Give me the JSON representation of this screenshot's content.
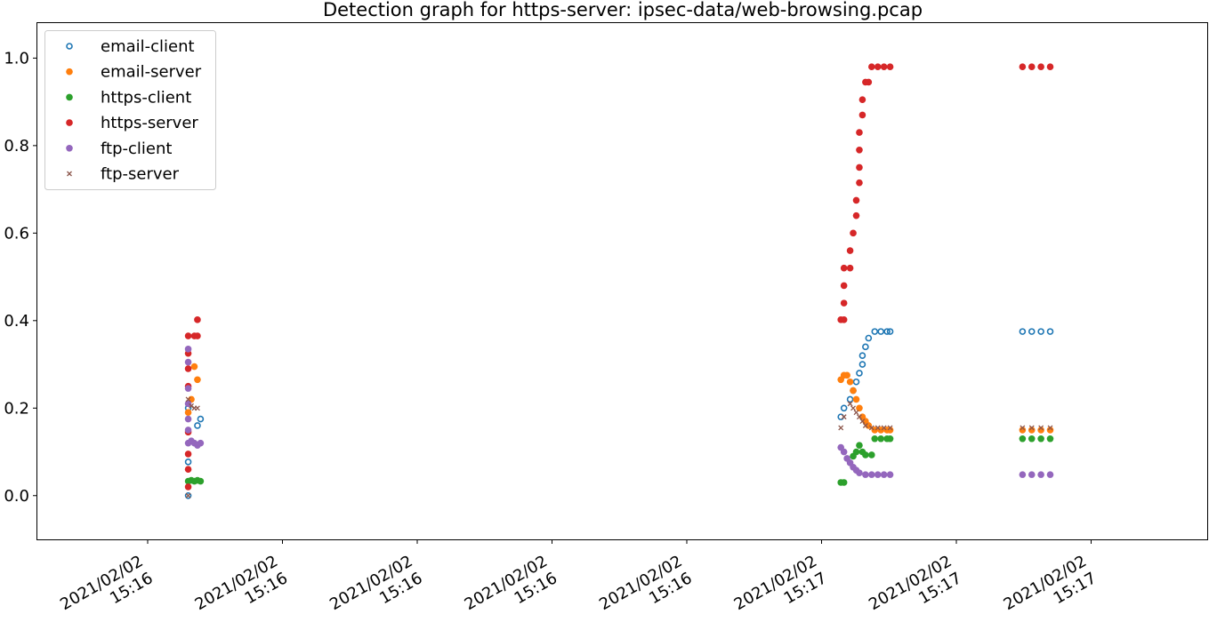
{
  "chart_data": {
    "type": "scatter",
    "title": "Detection graph for https-server: ipsec-data/web-browsing.pcap",
    "xlabel": "",
    "ylabel": "",
    "ylim": [
      -0.1,
      1.08
    ],
    "y_ticks": [
      "0.0",
      "0.2",
      "0.4",
      "0.6",
      "0.8",
      "1.0"
    ],
    "x_ticks": [
      "2021/02/02\n15:16",
      "2021/02/02\n15:16",
      "2021/02/02\n15:16",
      "2021/02/02\n15:16",
      "2021/02/02\n15:16",
      "2021/02/02\n15:17",
      "2021/02/02\n15:17",
      "2021/02/02\n15:17"
    ],
    "x_time_range": [
      "2021/02/02 15:16:51",
      "2021/02/02 15:17:29"
    ],
    "legend_position": "top-left",
    "grid": false,
    "series": [
      {
        "name": "email-client",
        "color": "#1f77b4",
        "marker": "open-circle",
        "points": [
          [
            "2021/02/02 15:16:55.9",
            0.0
          ],
          [
            "2021/02/02 15:16:55.9",
            0.077
          ],
          [
            "2021/02/02 15:16:55.9",
            0.2
          ],
          [
            "2021/02/02 15:16:56.2",
            0.16
          ],
          [
            "2021/02/02 15:16:56.3",
            0.175
          ],
          [
            "2021/02/02 15:17:17.1",
            0.18
          ],
          [
            "2021/02/02 15:17:17.2",
            0.2
          ],
          [
            "2021/02/02 15:17:17.4",
            0.22
          ],
          [
            "2021/02/02 15:17:17.5",
            0.24
          ],
          [
            "2021/02/02 15:17:17.6",
            0.26
          ],
          [
            "2021/02/02 15:17:17.7",
            0.28
          ],
          [
            "2021/02/02 15:17:17.8",
            0.3
          ],
          [
            "2021/02/02 15:17:17.8",
            0.32
          ],
          [
            "2021/02/02 15:17:17.9",
            0.34
          ],
          [
            "2021/02/02 15:17:18.0",
            0.36
          ],
          [
            "2021/02/02 15:17:18.2",
            0.375
          ],
          [
            "2021/02/02 15:17:18.4",
            0.375
          ],
          [
            "2021/02/02 15:17:18.6",
            0.375
          ],
          [
            "2021/02/02 15:17:18.7",
            0.375
          ],
          [
            "2021/02/02 15:17:23.0",
            0.375
          ],
          [
            "2021/02/02 15:17:23.3",
            0.375
          ],
          [
            "2021/02/02 15:17:23.6",
            0.375
          ],
          [
            "2021/02/02 15:17:23.9",
            0.375
          ]
        ]
      },
      {
        "name": "email-server",
        "color": "#ff7f0e",
        "marker": "filled-circle",
        "points": [
          [
            "2021/02/02 15:16:55.9",
            0.19
          ],
          [
            "2021/02/02 15:16:56.0",
            0.22
          ],
          [
            "2021/02/02 15:16:56.1",
            0.295
          ],
          [
            "2021/02/02 15:16:56.2",
            0.265
          ],
          [
            "2021/02/02 15:17:17.1",
            0.265
          ],
          [
            "2021/02/02 15:17:17.2",
            0.275
          ],
          [
            "2021/02/02 15:17:17.3",
            0.275
          ],
          [
            "2021/02/02 15:17:17.4",
            0.26
          ],
          [
            "2021/02/02 15:17:17.5",
            0.24
          ],
          [
            "2021/02/02 15:17:17.6",
            0.22
          ],
          [
            "2021/02/02 15:17:17.7",
            0.2
          ],
          [
            "2021/02/02 15:17:17.8",
            0.18
          ],
          [
            "2021/02/02 15:17:17.9",
            0.17
          ],
          [
            "2021/02/02 15:17:18.0",
            0.16
          ],
          [
            "2021/02/02 15:17:18.2",
            0.15
          ],
          [
            "2021/02/02 15:17:18.4",
            0.15
          ],
          [
            "2021/02/02 15:17:18.6",
            0.15
          ],
          [
            "2021/02/02 15:17:18.7",
            0.15
          ],
          [
            "2021/02/02 15:17:23.0",
            0.15
          ],
          [
            "2021/02/02 15:17:23.3",
            0.15
          ],
          [
            "2021/02/02 15:17:23.6",
            0.15
          ],
          [
            "2021/02/02 15:17:23.9",
            0.15
          ]
        ]
      },
      {
        "name": "https-client",
        "color": "#2ca02c",
        "marker": "filled-circle",
        "points": [
          [
            "2021/02/02 15:16:55.9",
            0.033
          ],
          [
            "2021/02/02 15:16:56.0",
            0.035
          ],
          [
            "2021/02/02 15:16:56.1",
            0.033
          ],
          [
            "2021/02/02 15:16:56.2",
            0.035
          ],
          [
            "2021/02/02 15:16:56.3",
            0.033
          ],
          [
            "2021/02/02 15:17:17.1",
            0.03
          ],
          [
            "2021/02/02 15:17:17.2",
            0.03
          ],
          [
            "2021/02/02 15:17:17.5",
            0.09
          ],
          [
            "2021/02/02 15:17:17.6",
            0.1
          ],
          [
            "2021/02/02 15:17:17.7",
            0.115
          ],
          [
            "2021/02/02 15:17:17.8",
            0.1
          ],
          [
            "2021/02/02 15:17:17.9",
            0.093
          ],
          [
            "2021/02/02 15:17:18.1",
            0.093
          ],
          [
            "2021/02/02 15:17:18.2",
            0.13
          ],
          [
            "2021/02/02 15:17:18.4",
            0.13
          ],
          [
            "2021/02/02 15:17:18.6",
            0.13
          ],
          [
            "2021/02/02 15:17:18.7",
            0.13
          ],
          [
            "2021/02/02 15:17:23.0",
            0.13
          ],
          [
            "2021/02/02 15:17:23.3",
            0.13
          ],
          [
            "2021/02/02 15:17:23.6",
            0.13
          ],
          [
            "2021/02/02 15:17:23.9",
            0.13
          ]
        ]
      },
      {
        "name": "https-server",
        "color": "#d62728",
        "marker": "filled-circle",
        "points": [
          [
            "2021/02/02 15:16:55.9",
            0.02
          ],
          [
            "2021/02/02 15:16:55.9",
            0.06
          ],
          [
            "2021/02/02 15:16:55.9",
            0.095
          ],
          [
            "2021/02/02 15:16:55.9",
            0.145
          ],
          [
            "2021/02/02 15:16:55.9",
            0.25
          ],
          [
            "2021/02/02 15:16:55.9",
            0.29
          ],
          [
            "2021/02/02 15:16:55.9",
            0.325
          ],
          [
            "2021/02/02 15:16:55.9",
            0.365
          ],
          [
            "2021/02/02 15:16:56.1",
            0.365
          ],
          [
            "2021/02/02 15:16:56.2",
            0.365
          ],
          [
            "2021/02/02 15:16:56.2",
            0.402
          ],
          [
            "2021/02/02 15:17:17.1",
            0.402
          ],
          [
            "2021/02/02 15:17:17.2",
            0.402
          ],
          [
            "2021/02/02 15:17:17.2",
            0.44
          ],
          [
            "2021/02/02 15:17:17.2",
            0.48
          ],
          [
            "2021/02/02 15:17:17.2",
            0.52
          ],
          [
            "2021/02/02 15:17:17.4",
            0.52
          ],
          [
            "2021/02/02 15:17:17.4",
            0.56
          ],
          [
            "2021/02/02 15:17:17.5",
            0.6
          ],
          [
            "2021/02/02 15:17:17.6",
            0.64
          ],
          [
            "2021/02/02 15:17:17.6",
            0.675
          ],
          [
            "2021/02/02 15:17:17.7",
            0.715
          ],
          [
            "2021/02/02 15:17:17.7",
            0.75
          ],
          [
            "2021/02/02 15:17:17.7",
            0.79
          ],
          [
            "2021/02/02 15:17:17.7",
            0.83
          ],
          [
            "2021/02/02 15:17:17.8",
            0.87
          ],
          [
            "2021/02/02 15:17:17.8",
            0.905
          ],
          [
            "2021/02/02 15:17:17.9",
            0.945
          ],
          [
            "2021/02/02 15:17:18.0",
            0.945
          ],
          [
            "2021/02/02 15:17:18.1",
            0.98
          ],
          [
            "2021/02/02 15:17:18.3",
            0.98
          ],
          [
            "2021/02/02 15:17:18.5",
            0.98
          ],
          [
            "2021/02/02 15:17:18.7",
            0.98
          ],
          [
            "2021/02/02 15:17:23.0",
            0.98
          ],
          [
            "2021/02/02 15:17:23.3",
            0.98
          ],
          [
            "2021/02/02 15:17:23.6",
            0.98
          ],
          [
            "2021/02/02 15:17:23.9",
            0.98
          ]
        ]
      },
      {
        "name": "ftp-client",
        "color": "#9467bd",
        "marker": "filled-circle",
        "points": [
          [
            "2021/02/02 15:16:55.9",
            0.335
          ],
          [
            "2021/02/02 15:16:55.9",
            0.305
          ],
          [
            "2021/02/02 15:16:55.9",
            0.245
          ],
          [
            "2021/02/02 15:16:55.9",
            0.21
          ],
          [
            "2021/02/02 15:16:55.9",
            0.175
          ],
          [
            "2021/02/02 15:16:55.9",
            0.15
          ],
          [
            "2021/02/02 15:16:55.9",
            0.12
          ],
          [
            "2021/02/02 15:16:56.0",
            0.125
          ],
          [
            "2021/02/02 15:16:56.1",
            0.12
          ],
          [
            "2021/02/02 15:16:56.2",
            0.115
          ],
          [
            "2021/02/02 15:16:56.3",
            0.12
          ],
          [
            "2021/02/02 15:17:17.1",
            0.11
          ],
          [
            "2021/02/02 15:17:17.2",
            0.1
          ],
          [
            "2021/02/02 15:17:17.3",
            0.085
          ],
          [
            "2021/02/02 15:17:17.4",
            0.075
          ],
          [
            "2021/02/02 15:17:17.5",
            0.065
          ],
          [
            "2021/02/02 15:17:17.6",
            0.058
          ],
          [
            "2021/02/02 15:17:17.7",
            0.052
          ],
          [
            "2021/02/02 15:17:17.9",
            0.048
          ],
          [
            "2021/02/02 15:17:18.1",
            0.048
          ],
          [
            "2021/02/02 15:17:18.3",
            0.048
          ],
          [
            "2021/02/02 15:17:18.5",
            0.048
          ],
          [
            "2021/02/02 15:17:18.7",
            0.048
          ],
          [
            "2021/02/02 15:17:23.0",
            0.048
          ],
          [
            "2021/02/02 15:17:23.3",
            0.048
          ],
          [
            "2021/02/02 15:17:23.6",
            0.048
          ],
          [
            "2021/02/02 15:17:23.9",
            0.048
          ]
        ]
      },
      {
        "name": "ftp-server",
        "color": "#8c564b",
        "marker": "x",
        "points": [
          [
            "2021/02/02 15:16:55.9",
            0.0
          ],
          [
            "2021/02/02 15:16:55.9",
            0.22
          ],
          [
            "2021/02/02 15:16:56.0",
            0.205
          ],
          [
            "2021/02/02 15:16:56.1",
            0.2
          ],
          [
            "2021/02/02 15:16:56.2",
            0.2
          ],
          [
            "2021/02/02 15:17:17.1",
            0.155
          ],
          [
            "2021/02/02 15:17:17.2",
            0.18
          ],
          [
            "2021/02/02 15:17:17.4",
            0.21
          ],
          [
            "2021/02/02 15:17:17.5",
            0.2
          ],
          [
            "2021/02/02 15:17:17.6",
            0.19
          ],
          [
            "2021/02/02 15:17:17.7",
            0.18
          ],
          [
            "2021/02/02 15:17:17.8",
            0.17
          ],
          [
            "2021/02/02 15:17:17.9",
            0.16
          ],
          [
            "2021/02/02 15:17:18.1",
            0.155
          ],
          [
            "2021/02/02 15:17:18.3",
            0.155
          ],
          [
            "2021/02/02 15:17:18.5",
            0.155
          ],
          [
            "2021/02/02 15:17:18.7",
            0.155
          ],
          [
            "2021/02/02 15:17:23.0",
            0.155
          ],
          [
            "2021/02/02 15:17:23.3",
            0.155
          ],
          [
            "2021/02/02 15:17:23.6",
            0.155
          ],
          [
            "2021/02/02 15:17:23.9",
            0.155
          ]
        ]
      }
    ]
  }
}
